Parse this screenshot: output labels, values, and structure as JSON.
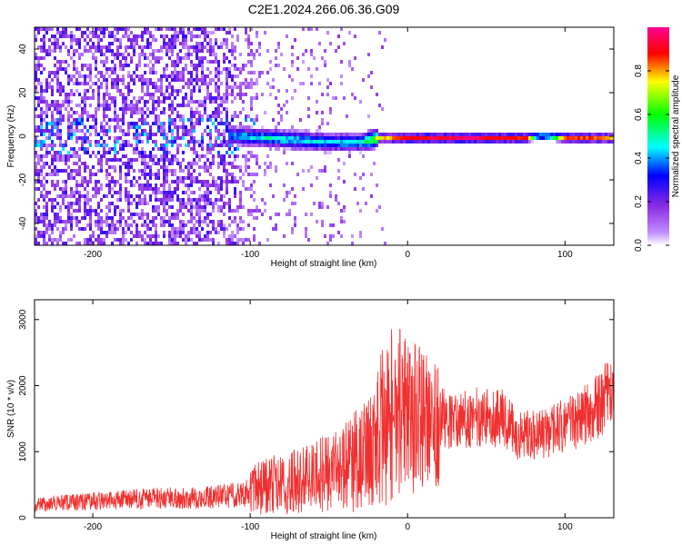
{
  "title": "C2E1.2024.266.06.36.G09",
  "chart_data": [
    {
      "type": "heatmap",
      "xlabel": "Height of straight line (km)",
      "ylabel": "Frequency (Hz)",
      "xlim": [
        -237,
        131
      ],
      "ylim": [
        -50,
        50
      ],
      "xticks": [
        -200,
        -100,
        0,
        100
      ],
      "yticks": [
        -40,
        -20,
        0,
        20,
        40
      ],
      "colorbar": {
        "label": "Normalized spectral amplitude",
        "range": [
          0,
          1
        ],
        "ticks": [
          "0.0",
          "0.2",
          "0.4",
          "0.6",
          "0.8"
        ]
      },
      "ridge": [
        {
          "x": -110,
          "y": 1,
          "amp": 0.45
        },
        {
          "x": -90,
          "y": 0,
          "amp": 0.5
        },
        {
          "x": -70,
          "y": -1,
          "amp": 0.5
        },
        {
          "x": -50,
          "y": -2,
          "amp": 0.45
        },
        {
          "x": -30,
          "y": -2,
          "amp": 0.5
        },
        {
          "x": -20,
          "y": 0,
          "amp": 0.75
        },
        {
          "x": 0,
          "y": 0,
          "amp": 0.9
        },
        {
          "x": 40,
          "y": 0,
          "amp": 0.95
        },
        {
          "x": 75,
          "y": 0,
          "amp": 0.85
        },
        {
          "x": 85,
          "y": 1,
          "amp": 0.5
        },
        {
          "x": 100,
          "y": 0,
          "amp": 0.9
        },
        {
          "x": 131,
          "y": 0,
          "amp": 0.75
        }
      ]
    },
    {
      "type": "line",
      "xlabel": "Height of straight line (km)",
      "ylabel": "SNR (10 * v/v)",
      "xlim": [
        -237,
        131
      ],
      "ylim": [
        0,
        3300
      ],
      "xticks": [
        -200,
        -100,
        0,
        100
      ],
      "yticks": [
        0,
        1000,
        2000,
        3000
      ],
      "color": "#f03030",
      "series": [
        {
          "x": [
            -237,
            -200,
            -160,
            -130,
            -110,
            -100,
            -90,
            -80,
            -70,
            -60,
            -50,
            -40,
            -30,
            -20,
            -15,
            -12,
            -10,
            -5,
            0,
            10,
            20,
            30,
            40,
            50,
            60,
            70,
            80,
            90,
            100,
            110,
            120,
            131
          ],
          "y": [
            200,
            250,
            300,
            300,
            350,
            400,
            500,
            500,
            550,
            600,
            700,
            750,
            900,
            1100,
            1500,
            1400,
            1600,
            1700,
            1600,
            1500,
            1550,
            1450,
            1500,
            1550,
            1500,
            1250,
            1250,
            1300,
            1400,
            1500,
            1700,
            1900
          ]
        }
      ]
    }
  ]
}
